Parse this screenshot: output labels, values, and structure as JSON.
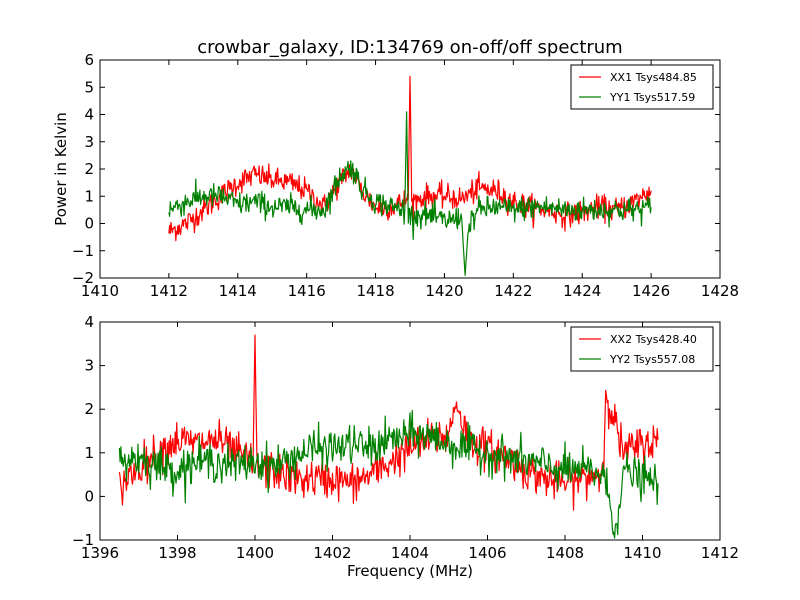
{
  "figure_title": "crowbar_galaxy, ID:134769 on-off/off spectrum",
  "chart_data": [
    {
      "type": "line",
      "title": "crowbar_galaxy, ID:134769 on-off/off spectrum",
      "xlabel": "",
      "ylabel": "Power in Kelvin",
      "xlim": [
        1410,
        1428
      ],
      "ylim": [
        -2,
        6
      ],
      "xticks": [
        "1410",
        "1412",
        "1414",
        "1416",
        "1418",
        "1420",
        "1422",
        "1424",
        "1426",
        "1428"
      ],
      "yticks": [
        "−2",
        "−1",
        "0",
        "1",
        "2",
        "3",
        "4",
        "5",
        "6"
      ],
      "grid": false,
      "legend_position": "top-right",
      "series": [
        {
          "name": "XX1 Tsys484.85",
          "color": "#ff0000",
          "x": [
            1412.0,
            1412.5,
            1413.0,
            1413.5,
            1414.0,
            1414.5,
            1415.0,
            1415.5,
            1416.0,
            1416.5,
            1417.0,
            1417.3,
            1417.6,
            1418.0,
            1418.5,
            1418.95,
            1419.0,
            1419.05,
            1419.5,
            1420.0,
            1420.5,
            1421.0,
            1421.5,
            1422.0,
            1422.5,
            1423.0,
            1423.5,
            1424.0,
            1424.5,
            1425.0,
            1425.5,
            1426.0
          ],
          "y": [
            -0.3,
            0.0,
            0.5,
            1.0,
            1.5,
            1.8,
            1.6,
            1.5,
            1.2,
            0.6,
            1.6,
            2.0,
            1.2,
            0.6,
            0.6,
            0.9,
            5.4,
            0.8,
            1.0,
            1.0,
            0.9,
            1.3,
            1.2,
            0.8,
            0.6,
            0.5,
            0.3,
            0.4,
            0.6,
            0.5,
            0.8,
            1.2
          ]
        },
        {
          "name": "YY1 Tsys517.59",
          "color": "#008000",
          "x": [
            1412.0,
            1412.5,
            1413.0,
            1413.5,
            1414.0,
            1414.5,
            1415.0,
            1415.5,
            1416.0,
            1416.5,
            1417.0,
            1417.3,
            1417.6,
            1418.0,
            1418.5,
            1418.85,
            1418.9,
            1418.95,
            1419.5,
            1420.0,
            1420.5,
            1420.6,
            1420.7,
            1421.0,
            1421.5,
            1422.0,
            1422.5,
            1423.0,
            1423.5,
            1424.0,
            1424.5,
            1425.0,
            1425.5,
            1426.0
          ],
          "y": [
            0.5,
            0.8,
            1.0,
            1.0,
            0.7,
            0.8,
            0.6,
            0.6,
            0.5,
            0.5,
            1.8,
            2.1,
            1.3,
            0.8,
            0.6,
            0.5,
            4.1,
            0.3,
            0.3,
            0.1,
            0.2,
            -1.9,
            0.0,
            0.5,
            0.6,
            0.5,
            0.6,
            0.6,
            0.5,
            0.5,
            0.5,
            0.5,
            0.5,
            0.6
          ]
        }
      ]
    },
    {
      "type": "line",
      "title": "",
      "xlabel": "Frequency (MHz)",
      "ylabel": "",
      "xlim": [
        1396,
        1412
      ],
      "ylim": [
        -1,
        4
      ],
      "xticks": [
        "1396",
        "1398",
        "1400",
        "1402",
        "1404",
        "1406",
        "1408",
        "1410",
        "1412"
      ],
      "yticks": [
        "−1",
        "0",
        "1",
        "2",
        "3",
        "4"
      ],
      "grid": false,
      "legend_position": "top-right",
      "series": [
        {
          "name": "XX2 Tsys428.40",
          "color": "#ff0000",
          "x": [
            1396.5,
            1397.0,
            1397.5,
            1398.0,
            1398.5,
            1399.0,
            1399.5,
            1399.95,
            1400.0,
            1400.05,
            1400.5,
            1401.0,
            1401.5,
            1402.0,
            1402.5,
            1403.0,
            1403.5,
            1404.0,
            1404.5,
            1405.0,
            1405.2,
            1405.5,
            1406.0,
            1406.5,
            1407.0,
            1407.5,
            1408.0,
            1408.5,
            1409.0,
            1409.05,
            1409.5,
            1410.0,
            1410.4
          ],
          "y": [
            0.2,
            0.7,
            1.0,
            1.3,
            1.2,
            1.3,
            1.0,
            0.8,
            3.7,
            0.6,
            0.6,
            0.4,
            0.4,
            0.4,
            0.3,
            0.5,
            0.8,
            1.1,
            1.3,
            1.4,
            2.2,
            1.3,
            1.1,
            0.9,
            0.6,
            0.4,
            0.3,
            0.4,
            0.6,
            2.5,
            1.0,
            1.2,
            1.3
          ]
        },
        {
          "name": "YY2 Tsys557.08",
          "color": "#008000",
          "x": [
            1396.5,
            1397.0,
            1397.5,
            1398.0,
            1398.5,
            1399.0,
            1399.5,
            1400.0,
            1400.5,
            1401.0,
            1401.5,
            1402.0,
            1402.5,
            1403.0,
            1403.5,
            1404.0,
            1404.5,
            1405.0,
            1405.5,
            1406.0,
            1406.5,
            1407.0,
            1407.5,
            1408.0,
            1408.5,
            1409.0,
            1409.3,
            1409.5,
            1410.0,
            1410.4
          ],
          "y": [
            0.8,
            0.9,
            0.7,
            0.6,
            0.8,
            0.8,
            0.7,
            0.8,
            0.7,
            0.9,
            1.1,
            1.1,
            1.2,
            1.1,
            1.3,
            1.4,
            1.4,
            1.2,
            1.1,
            1.0,
            0.9,
            0.8,
            0.7,
            0.6,
            0.6,
            0.5,
            -0.8,
            0.6,
            0.4,
            0.3
          ]
        }
      ]
    }
  ]
}
